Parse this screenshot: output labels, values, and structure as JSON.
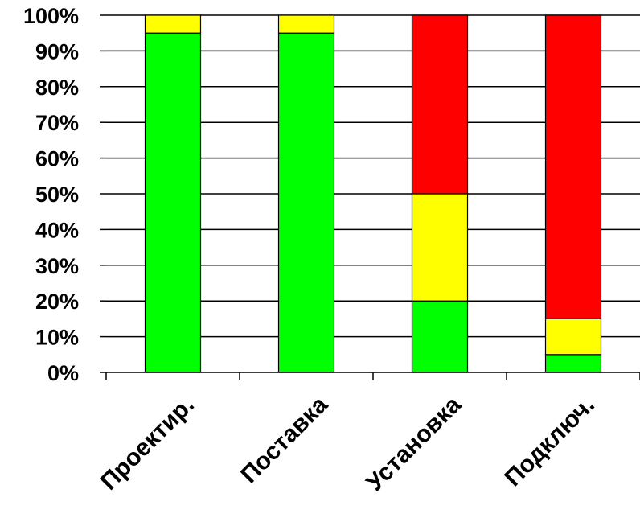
{
  "chart_data": {
    "type": "bar",
    "stacked": true,
    "percent": true,
    "categories": [
      "Проектир.",
      "Поставка",
      "Установка",
      "Подключ."
    ],
    "series": [
      {
        "color": "#00ff00",
        "values": [
          95,
          95,
          20,
          5
        ]
      },
      {
        "color": "#ffff00",
        "values": [
          5,
          5,
          30,
          10
        ]
      },
      {
        "color": "#ff0000",
        "values": [
          0,
          0,
          50,
          85
        ]
      }
    ],
    "yticks": [
      "0%",
      "10%",
      "20%",
      "30%",
      "40%",
      "50%",
      "60%",
      "70%",
      "80%",
      "90%",
      "100%"
    ],
    "ylim": [
      0,
      100
    ],
    "grid": true,
    "legend": "none"
  }
}
